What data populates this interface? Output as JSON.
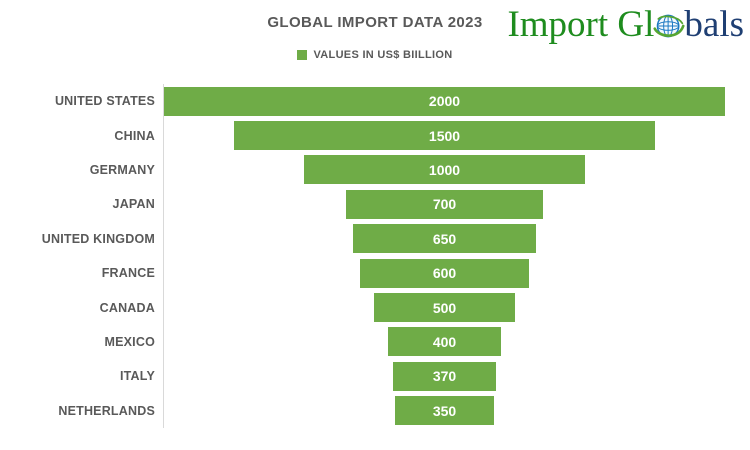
{
  "header": {
    "title": "GLOBAL IMPORT DATA 2023",
    "legend_label": "VALUES IN US$ BIILLION"
  },
  "logo": {
    "text_green": "Import Gl",
    "text_blue": "bals",
    "globe_icon": "globe-icon"
  },
  "colors": {
    "bar_fill": "#6fac47",
    "title_text": "#595959",
    "label_text": "#595959",
    "value_text": "#ffffff",
    "axis_line": "#d9d9d9",
    "logo_green": "#1e8c1e",
    "logo_blue": "#1f3f73",
    "globe_blue": "#1a78c2",
    "globe_swoosh": "#56a632"
  },
  "chart_data": {
    "type": "bar",
    "subtype": "centered-funnel",
    "orientation": "horizontal",
    "title": "GLOBAL IMPORT DATA 2023",
    "legend": [
      "VALUES IN US$ BIILLION"
    ],
    "legend_position": "top-center",
    "categories": [
      "UNITED STATES",
      "CHINA",
      "GERMANY",
      "JAPAN",
      "UNITED KINGDOM",
      "FRANCE",
      "CANADA",
      "MEXICO",
      "ITALY",
      "NETHERLANDS"
    ],
    "values": [
      2000,
      1500,
      1000,
      700,
      650,
      600,
      500,
      400,
      370,
      350
    ],
    "value_labels_shown": true,
    "xlabel": "",
    "ylabel": "",
    "xmax": 2000,
    "grid": false
  }
}
